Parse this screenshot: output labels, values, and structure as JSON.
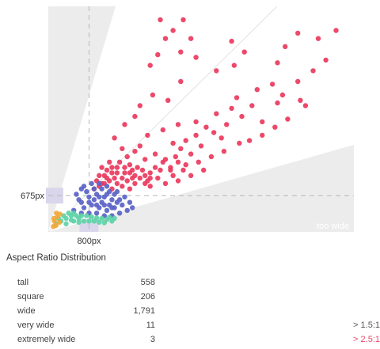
{
  "chart_data": {
    "type": "scatter",
    "title": "",
    "xlabel": "",
    "ylabel": "",
    "x_unit": "px",
    "y_unit": "px",
    "xlim": [
      0,
      6000
    ],
    "ylim": [
      0,
      4200
    ],
    "reference_x": 800,
    "reference_y": 675,
    "reference_x_label": "800px",
    "reference_y_label": "675px",
    "zone_label": "too wide",
    "grid": false,
    "categories": [
      "tall",
      "square",
      "wide",
      "very wide",
      "extremely wide"
    ],
    "colors": {
      "tall": "#f0a93b",
      "square": "#5dd3a6",
      "wide": "#5a63c7",
      "large": "#ea3a5d",
      "zone": "#ececec",
      "highlight": "#d9d6ec"
    },
    "series": [
      {
        "color_key": "large",
        "points": [
          [
            2200,
            3950
          ],
          [
            2450,
            3750
          ],
          [
            2300,
            3600
          ],
          [
            2150,
            3300
          ],
          [
            2000,
            3100
          ],
          [
            2650,
            3950
          ],
          [
            2800,
            3600
          ],
          [
            2600,
            3350
          ],
          [
            2900,
            3250
          ],
          [
            3600,
            3550
          ],
          [
            3850,
            3350
          ],
          [
            3650,
            3100
          ],
          [
            3300,
            3000
          ],
          [
            4900,
            3700
          ],
          [
            4650,
            3450
          ],
          [
            4500,
            3150
          ],
          [
            5300,
            3600
          ],
          [
            5650,
            3750
          ],
          [
            5450,
            3200
          ],
          [
            5200,
            3000
          ],
          [
            4900,
            2800
          ],
          [
            4400,
            2750
          ],
          [
            4100,
            2650
          ],
          [
            3700,
            2500
          ],
          [
            4600,
            2550
          ],
          [
            4950,
            2450
          ],
          [
            5050,
            2350
          ],
          [
            4500,
            2400
          ],
          [
            4000,
            2350
          ],
          [
            3600,
            2300
          ],
          [
            3300,
            2200
          ],
          [
            3800,
            2150
          ],
          [
            4200,
            2050
          ],
          [
            3500,
            2000
          ],
          [
            3100,
            1950
          ],
          [
            3250,
            1850
          ],
          [
            2900,
            1800
          ],
          [
            3400,
            1750
          ],
          [
            2700,
            1700
          ],
          [
            3000,
            1600
          ],
          [
            2600,
            1550
          ],
          [
            2800,
            1450
          ],
          [
            2500,
            1400
          ],
          [
            2300,
            1350
          ],
          [
            2700,
            1250
          ],
          [
            2400,
            1200
          ],
          [
            2200,
            1150
          ],
          [
            2000,
            1100
          ],
          [
            2900,
            2050
          ],
          [
            2550,
            2000
          ],
          [
            2250,
            1900
          ],
          [
            1950,
            1800
          ],
          [
            2450,
            1650
          ],
          [
            1800,
            1600
          ],
          [
            2100,
            1450
          ],
          [
            1700,
            1500
          ],
          [
            1900,
            1350
          ],
          [
            1600,
            1250
          ],
          [
            2350,
            2450
          ],
          [
            2050,
            2550
          ],
          [
            1800,
            2350
          ],
          [
            1700,
            2150
          ],
          [
            1500,
            2000
          ],
          [
            2600,
            2800
          ],
          [
            1300,
            1750
          ],
          [
            1450,
            1550
          ],
          [
            1200,
            1300
          ],
          [
            1350,
            1200
          ],
          [
            1250,
            1100
          ],
          [
            1100,
            1050
          ],
          [
            1050,
            1200
          ],
          [
            1000,
            1050
          ],
          [
            1500,
            1100
          ],
          [
            1650,
            1150
          ],
          [
            1800,
            1000
          ],
          [
            1550,
            950
          ],
          [
            1350,
            900
          ],
          [
            1200,
            950
          ],
          [
            950,
            950
          ],
          [
            1100,
            900
          ],
          [
            1450,
            850
          ],
          [
            1700,
            900
          ],
          [
            1900,
            1050
          ],
          [
            2150,
            1000
          ],
          [
            2450,
            1050
          ],
          [
            2650,
            1150
          ],
          [
            2950,
            1300
          ],
          [
            3200,
            1400
          ],
          [
            3450,
            1500
          ],
          [
            3750,
            1650
          ],
          [
            3950,
            1700
          ],
          [
            4200,
            1800
          ],
          [
            4450,
            1950
          ],
          [
            4700,
            2100
          ],
          [
            3050,
            1150
          ],
          [
            2800,
            1050
          ],
          [
            2550,
            950
          ],
          [
            2300,
            900
          ],
          [
            2000,
            850
          ],
          [
            1600,
            800
          ],
          [
            1250,
            800
          ],
          [
            1000,
            850
          ],
          [
            900,
            800
          ],
          [
            1150,
            1150
          ],
          [
            1300,
            1000
          ],
          [
            1400,
            1300
          ],
          [
            1550,
            1400
          ],
          [
            1650,
            1000
          ],
          [
            1750,
            1200
          ],
          [
            1850,
            1150
          ],
          [
            1950,
            950
          ],
          [
            2100,
            1200
          ],
          [
            2250,
            1300
          ],
          [
            2400,
            1150
          ],
          [
            2550,
            1300
          ],
          [
            1450,
            1000
          ],
          [
            1600,
            1100
          ],
          [
            1150,
            1000
          ],
          [
            1050,
            900
          ],
          [
            1350,
            1100
          ],
          [
            1500,
            1200
          ],
          [
            2000,
            1000
          ],
          [
            1900,
            900
          ],
          [
            1700,
            1050
          ],
          [
            1250,
            1200
          ]
        ]
      },
      {
        "color_key": "wide",
        "points": [
          [
            500,
            400
          ],
          [
            650,
            550
          ],
          [
            800,
            650
          ],
          [
            950,
            700
          ],
          [
            1100,
            650
          ],
          [
            1250,
            600
          ],
          [
            1400,
            600
          ],
          [
            1300,
            450
          ],
          [
            1150,
            400
          ],
          [
            1000,
            450
          ],
          [
            850,
            500
          ],
          [
            700,
            450
          ],
          [
            600,
            600
          ],
          [
            750,
            750
          ],
          [
            900,
            800
          ],
          [
            1050,
            800
          ],
          [
            1200,
            750
          ],
          [
            1350,
            750
          ],
          [
            1450,
            500
          ],
          [
            1550,
            400
          ],
          [
            1400,
            350
          ],
          [
            1250,
            300
          ],
          [
            1100,
            300
          ],
          [
            950,
            350
          ],
          [
            800,
            350
          ],
          [
            650,
            350
          ],
          [
            700,
            850
          ],
          [
            850,
            900
          ],
          [
            1000,
            900
          ],
          [
            1150,
            850
          ],
          [
            900,
            600
          ],
          [
            1050,
            550
          ],
          [
            1200,
            500
          ],
          [
            1350,
            550
          ],
          [
            1500,
            650
          ],
          [
            1600,
            550
          ],
          [
            1650,
            450
          ],
          [
            550,
            700
          ],
          [
            650,
            800
          ],
          [
            1000,
            650
          ],
          [
            1150,
            700
          ],
          [
            1300,
            700
          ],
          [
            800,
            550
          ],
          [
            950,
            500
          ],
          [
            1100,
            500
          ],
          [
            1250,
            450
          ]
        ]
      },
      {
        "color_key": "square",
        "points": [
          [
            150,
            150
          ],
          [
            250,
            200
          ],
          [
            350,
            250
          ],
          [
            450,
            300
          ],
          [
            550,
            300
          ],
          [
            650,
            300
          ],
          [
            750,
            300
          ],
          [
            850,
            280
          ],
          [
            950,
            260
          ],
          [
            1050,
            250
          ],
          [
            1150,
            230
          ],
          [
            1250,
            200
          ],
          [
            200,
            250
          ],
          [
            300,
            300
          ],
          [
            400,
            350
          ],
          [
            500,
            350
          ],
          [
            600,
            250
          ],
          [
            700,
            200
          ],
          [
            800,
            200
          ],
          [
            900,
            200
          ],
          [
            1000,
            180
          ],
          [
            1100,
            170
          ],
          [
            350,
            150
          ],
          [
            500,
            200
          ],
          [
            1200,
            270
          ],
          [
            1300,
            250
          ],
          [
            450,
            220
          ],
          [
            600,
            180
          ]
        ]
      },
      {
        "color_key": "tall",
        "points": [
          [
            120,
            200
          ],
          [
            180,
            280
          ],
          [
            150,
            120
          ],
          [
            220,
            180
          ],
          [
            100,
            100
          ],
          [
            160,
            350
          ],
          [
            230,
            330
          ],
          [
            110,
            250
          ]
        ]
      }
    ]
  },
  "distribution": {
    "title": "Aspect Ratio Distribution",
    "rows": [
      {
        "label": "tall",
        "count": "558",
        "note": ""
      },
      {
        "label": "square",
        "count": "206",
        "note": ""
      },
      {
        "label": "wide",
        "count": "1,791",
        "note": ""
      },
      {
        "label": "very wide",
        "count": "11",
        "note": "> 1.5:1"
      },
      {
        "label": "extremely wide",
        "count": "3",
        "note": "> 2.5:1"
      }
    ]
  }
}
